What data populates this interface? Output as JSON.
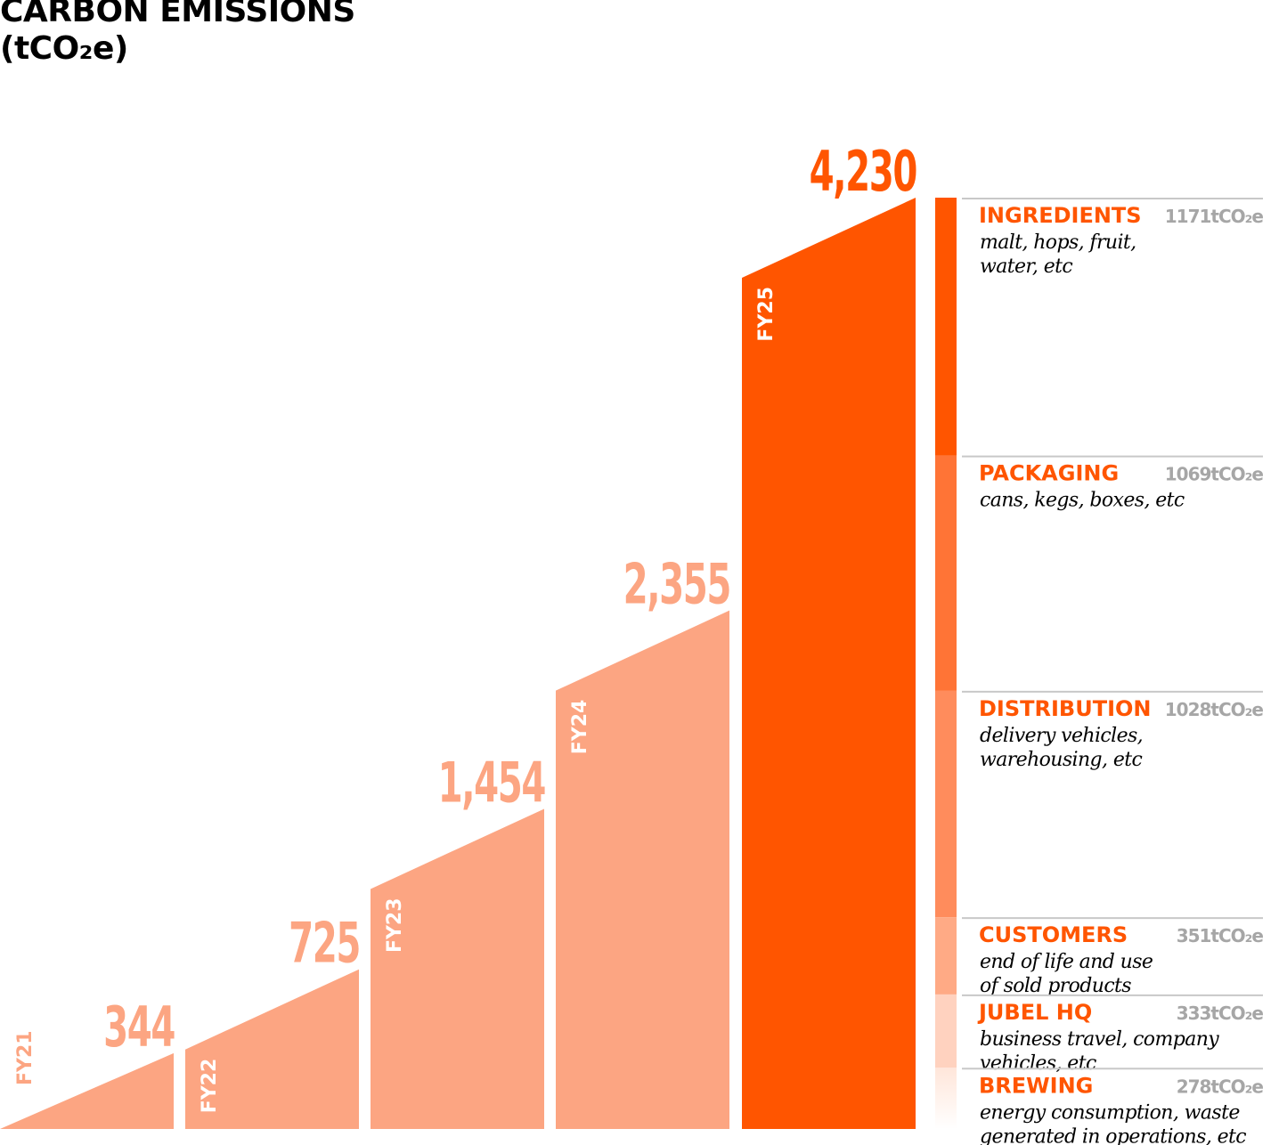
{
  "title": "CARBON EMISSIONS",
  "subtitle": "(tCO₂e)",
  "colors": {
    "past_years": "#FCA582",
    "current_year": "#FF5500",
    "breakdown_title": "#FF5500",
    "breakdown_value": "#A6A6A6",
    "breakdown_desc": "#000000",
    "rule": "#C8C8C8"
  },
  "chart_data": [
    {
      "type": "bar",
      "title": "CARBON EMISSIONS",
      "subtitle": "(tCO₂e)",
      "categories": [
        "FY21",
        "FY22",
        "FY23",
        "FY24",
        "FY25"
      ],
      "values": [
        344,
        725,
        1454,
        2355,
        4230
      ],
      "value_labels": [
        "344",
        "725",
        "1,454",
        "2,355",
        "4,230"
      ],
      "ylim": [
        0,
        4230
      ],
      "grid": false,
      "xlabel": "",
      "ylabel": ""
    },
    {
      "type": "bar",
      "stacked": true,
      "category": "FY25",
      "breakdown": [
        {
          "name": "INGREDIENTS",
          "value": 1171,
          "value_label": "1171tCO₂e",
          "description_lines": [
            "malt, hops, fruit,",
            "water, etc"
          ],
          "color": "#FF5500"
        },
        {
          "name": "PACKAGING",
          "value": 1069,
          "value_label": "1069tCO₂e",
          "description_lines": [
            "cans, kegs, boxes, etc"
          ],
          "color": "#FF7436"
        },
        {
          "name": "DISTRIBUTION",
          "value": 1028,
          "value_label": "1028tCO₂e",
          "description_lines": [
            "delivery vehicles,",
            "warehousing, etc"
          ],
          "color": "#FF8C5C"
        },
        {
          "name": "CUSTOMERS",
          "value": 351,
          "value_label": "351tCO₂e",
          "description_lines": [
            "end of life and use",
            "of sold products"
          ],
          "color": "#FFAA85"
        },
        {
          "name": "JUBEL HQ",
          "value": 333,
          "value_label": "333tCO₂e",
          "description_lines": [
            "business travel, company",
            "vehicles, etc"
          ],
          "color": "#FFD2BF"
        },
        {
          "name": "BREWING",
          "value": 278,
          "value_label": "278tCO₂e",
          "description_lines": [
            "energy consumption, waste",
            "generated in operations, etc"
          ],
          "color": "#FFEDE5"
        }
      ]
    }
  ]
}
